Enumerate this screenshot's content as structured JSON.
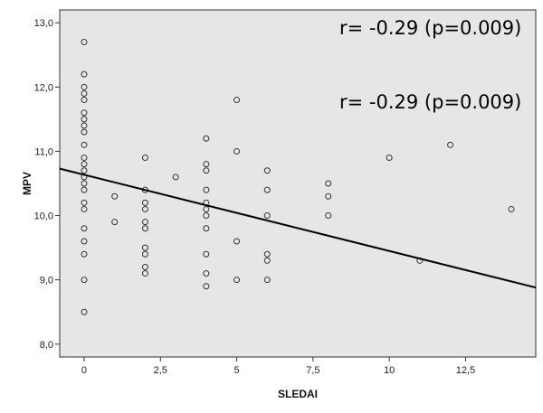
{
  "chart_data": {
    "type": "scatter",
    "xlabel": "SLEDAI",
    "ylabel": "MPV",
    "xlim": [
      -0.8,
      14.8
    ],
    "ylim": [
      7.8,
      13.2
    ],
    "x_ticks": [
      0,
      2.5,
      5,
      7.5,
      10,
      12.5
    ],
    "x_tick_labels": [
      "0",
      "2,5",
      "5",
      "7,5",
      "10",
      "12,5"
    ],
    "y_ticks": [
      8.0,
      9.0,
      10.0,
      11.0,
      12.0,
      13.0
    ],
    "y_tick_labels": [
      "8,0",
      "9,0",
      "10,0",
      "11,0",
      "12,0",
      "13,0"
    ],
    "grid": false,
    "annotations": [
      "r= -0.29 (p=0.009)",
      "r= -0.29 (p=0.009)"
    ],
    "points": [
      [
        0,
        12.7
      ],
      [
        0,
        12.2
      ],
      [
        0,
        12.0
      ],
      [
        0,
        11.9
      ],
      [
        0,
        11.8
      ],
      [
        0,
        11.6
      ],
      [
        0,
        11.5
      ],
      [
        0,
        11.4
      ],
      [
        0,
        11.3
      ],
      [
        0,
        11.1
      ],
      [
        0,
        10.9
      ],
      [
        0,
        10.8
      ],
      [
        0,
        10.7
      ],
      [
        0,
        10.6
      ],
      [
        0,
        10.5
      ],
      [
        0,
        10.4
      ],
      [
        0,
        10.2
      ],
      [
        0,
        10.1
      ],
      [
        0,
        9.8
      ],
      [
        0,
        9.6
      ],
      [
        0,
        9.4
      ],
      [
        0,
        9.0
      ],
      [
        0,
        8.5
      ],
      [
        1,
        10.3
      ],
      [
        1,
        9.9
      ],
      [
        2,
        10.9
      ],
      [
        2,
        10.4
      ],
      [
        2,
        10.2
      ],
      [
        2,
        10.1
      ],
      [
        2,
        9.9
      ],
      [
        2,
        9.8
      ],
      [
        2,
        9.5
      ],
      [
        2,
        9.4
      ],
      [
        2,
        9.2
      ],
      [
        2,
        9.1
      ],
      [
        3,
        10.6
      ],
      [
        4,
        11.2
      ],
      [
        4,
        10.8
      ],
      [
        4,
        10.7
      ],
      [
        4,
        10.4
      ],
      [
        4,
        10.2
      ],
      [
        4,
        10.1
      ],
      [
        4,
        10.0
      ],
      [
        4,
        9.8
      ],
      [
        4,
        9.4
      ],
      [
        4,
        9.1
      ],
      [
        4,
        8.9
      ],
      [
        5,
        11.8
      ],
      [
        5,
        11.0
      ],
      [
        5,
        9.6
      ],
      [
        5,
        9.0
      ],
      [
        6,
        10.7
      ],
      [
        6,
        10.4
      ],
      [
        6,
        10.0
      ],
      [
        6,
        9.4
      ],
      [
        6,
        9.3
      ],
      [
        6,
        9.0
      ],
      [
        8,
        10.5
      ],
      [
        8,
        10.3
      ],
      [
        8,
        10.0
      ],
      [
        10,
        10.9
      ],
      [
        11,
        9.3
      ],
      [
        12,
        11.1
      ],
      [
        14,
        10.1
      ]
    ],
    "fit_line": {
      "x": [
        -0.8,
        14.8
      ],
      "y": [
        10.73,
        8.88
      ]
    },
    "colors": {
      "plot_bg": "#e6e6e6",
      "axis": "#333333",
      "marker": "#333333",
      "line": "#000000"
    }
  }
}
